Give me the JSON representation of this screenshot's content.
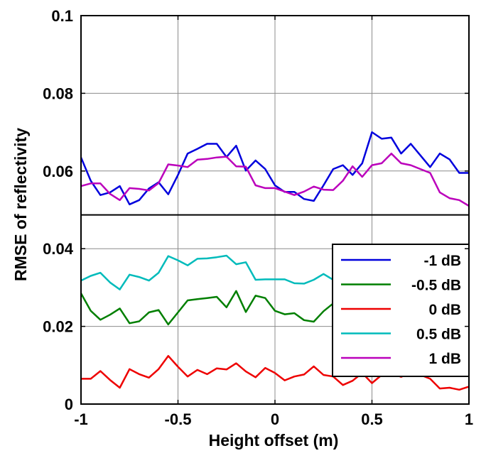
{
  "chart_data": {
    "type": "line",
    "title": "",
    "xlabel": "Height offset (m)",
    "ylabel": "RMSE of reflectivity",
    "xlim": [
      -1,
      1
    ],
    "ylim": [
      0,
      0.1
    ],
    "x_ticks": [
      "-1",
      "-0.5",
      "0",
      "0.5",
      "1"
    ],
    "y_ticks": [
      "0",
      "0.02",
      "0.04",
      "0.06",
      "0.08",
      "0.1"
    ],
    "grid": true,
    "legend_position": "lower-right",
    "separator_line_y": 0.0487,
    "x": [
      -1.0,
      -0.95,
      -0.9,
      -0.85,
      -0.8,
      -0.75,
      -0.7,
      -0.65,
      -0.6,
      -0.55,
      -0.5,
      -0.45,
      -0.4,
      -0.35,
      -0.3,
      -0.25,
      -0.2,
      -0.15,
      -0.1,
      -0.05,
      0.0,
      0.05,
      0.1,
      0.15,
      0.2,
      0.25,
      0.3,
      0.35,
      0.4,
      0.45,
      0.5,
      0.55,
      0.6,
      0.65,
      0.7,
      0.75,
      0.8,
      0.85,
      0.9,
      0.95,
      1.0
    ],
    "series": [
      {
        "name": "-1 dB",
        "color": "#0000dd",
        "values": [
          0.0635,
          0.0575,
          0.0538,
          0.0545,
          0.0561,
          0.0514,
          0.0525,
          0.0555,
          0.0571,
          0.054,
          0.059,
          0.0645,
          0.0657,
          0.067,
          0.067,
          0.0636,
          0.0665,
          0.0601,
          0.0627,
          0.0605,
          0.0563,
          0.0546,
          0.0546,
          0.0528,
          0.0523,
          0.0563,
          0.0605,
          0.0615,
          0.059,
          0.062,
          0.07,
          0.0683,
          0.0686,
          0.0645,
          0.067,
          0.064,
          0.061,
          0.0645,
          0.063,
          0.0595,
          0.0595
        ]
      },
      {
        "name": "-0.5 dB",
        "color": "#007f00",
        "values": [
          0.0285,
          0.024,
          0.0217,
          0.023,
          0.0246,
          0.0208,
          0.0213,
          0.0236,
          0.0242,
          0.0205,
          0.0236,
          0.0267,
          0.027,
          0.0273,
          0.0276,
          0.0249,
          0.0291,
          0.0237,
          0.0279,
          0.0273,
          0.024,
          0.0231,
          0.0234,
          0.0216,
          0.0212,
          0.0239,
          0.0259,
          0.0243,
          0.024,
          0.0238,
          0.026,
          0.0255,
          0.025,
          0.023,
          0.0245,
          0.0235,
          0.023,
          0.024,
          0.0245,
          0.025,
          0.025
        ]
      },
      {
        "name": "0 dB",
        "color": "#ee0000",
        "values": [
          0.0065,
          0.0065,
          0.0085,
          0.0062,
          0.0042,
          0.009,
          0.0077,
          0.0068,
          0.009,
          0.0124,
          0.0096,
          0.0071,
          0.0088,
          0.0077,
          0.0092,
          0.0089,
          0.0105,
          0.0084,
          0.0069,
          0.0093,
          0.008,
          0.0061,
          0.0071,
          0.0076,
          0.0097,
          0.0075,
          0.0071,
          0.0049,
          0.006,
          0.008,
          0.0054,
          0.0075,
          0.008,
          0.007,
          0.008,
          0.0075,
          0.0065,
          0.004,
          0.0042,
          0.0037,
          0.0045
        ]
      },
      {
        "name": "0.5 dB",
        "color": "#00bbbb",
        "values": [
          0.0318,
          0.033,
          0.0338,
          0.0313,
          0.0295,
          0.0333,
          0.0327,
          0.0318,
          0.0338,
          0.0381,
          0.037,
          0.0357,
          0.0374,
          0.0375,
          0.0378,
          0.0382,
          0.036,
          0.0365,
          0.032,
          0.0321,
          0.0321,
          0.0321,
          0.0311,
          0.031,
          0.032,
          0.0335,
          0.032,
          0.0325,
          0.032,
          0.0325,
          0.033,
          0.0335,
          0.034,
          0.0345,
          0.035,
          0.0345,
          0.034,
          0.0335,
          0.033,
          0.033,
          0.033
        ]
      },
      {
        "name": "1 dB",
        "color": "#bb00bb",
        "values": [
          0.0561,
          0.0568,
          0.0568,
          0.0541,
          0.0525,
          0.0556,
          0.0554,
          0.055,
          0.0569,
          0.0617,
          0.0614,
          0.061,
          0.0629,
          0.0631,
          0.0635,
          0.0637,
          0.0612,
          0.0611,
          0.0563,
          0.0556,
          0.0556,
          0.0547,
          0.0538,
          0.0547,
          0.056,
          0.0552,
          0.0551,
          0.0575,
          0.0612,
          0.0585,
          0.0615,
          0.062,
          0.0645,
          0.062,
          0.0615,
          0.0605,
          0.0595,
          0.0545,
          0.053,
          0.0525,
          0.051
        ]
      }
    ]
  }
}
